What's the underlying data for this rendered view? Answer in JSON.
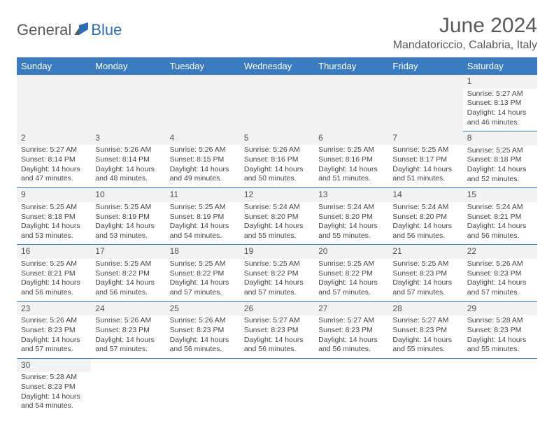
{
  "logo": {
    "text1": "General",
    "text2": "Blue"
  },
  "title": "June 2024",
  "location": "Mandatoriccio, Calabria, Italy",
  "colors": {
    "header_bg": "#3a7bbf",
    "header_text": "#ffffff",
    "body_text": "#444444",
    "title_text": "#58595b",
    "row_divider": "#3a7bbf",
    "daynum_bg": "#f2f2f2"
  },
  "daysOfWeek": [
    "Sunday",
    "Monday",
    "Tuesday",
    "Wednesday",
    "Thursday",
    "Friday",
    "Saturday"
  ],
  "weeks": [
    [
      null,
      null,
      null,
      null,
      null,
      null,
      {
        "n": "1",
        "sr": "5:27 AM",
        "ss": "8:13 PM",
        "dl": "14 hours and 46 minutes."
      }
    ],
    [
      {
        "n": "2",
        "sr": "5:27 AM",
        "ss": "8:14 PM",
        "dl": "14 hours and 47 minutes."
      },
      {
        "n": "3",
        "sr": "5:26 AM",
        "ss": "8:14 PM",
        "dl": "14 hours and 48 minutes."
      },
      {
        "n": "4",
        "sr": "5:26 AM",
        "ss": "8:15 PM",
        "dl": "14 hours and 49 minutes."
      },
      {
        "n": "5",
        "sr": "5:26 AM",
        "ss": "8:16 PM",
        "dl": "14 hours and 50 minutes."
      },
      {
        "n": "6",
        "sr": "5:25 AM",
        "ss": "8:16 PM",
        "dl": "14 hours and 51 minutes."
      },
      {
        "n": "7",
        "sr": "5:25 AM",
        "ss": "8:17 PM",
        "dl": "14 hours and 51 minutes."
      },
      {
        "n": "8",
        "sr": "5:25 AM",
        "ss": "8:18 PM",
        "dl": "14 hours and 52 minutes."
      }
    ],
    [
      {
        "n": "9",
        "sr": "5:25 AM",
        "ss": "8:18 PM",
        "dl": "14 hours and 53 minutes."
      },
      {
        "n": "10",
        "sr": "5:25 AM",
        "ss": "8:19 PM",
        "dl": "14 hours and 53 minutes."
      },
      {
        "n": "11",
        "sr": "5:25 AM",
        "ss": "8:19 PM",
        "dl": "14 hours and 54 minutes."
      },
      {
        "n": "12",
        "sr": "5:24 AM",
        "ss": "8:20 PM",
        "dl": "14 hours and 55 minutes."
      },
      {
        "n": "13",
        "sr": "5:24 AM",
        "ss": "8:20 PM",
        "dl": "14 hours and 55 minutes."
      },
      {
        "n": "14",
        "sr": "5:24 AM",
        "ss": "8:20 PM",
        "dl": "14 hours and 56 minutes."
      },
      {
        "n": "15",
        "sr": "5:24 AM",
        "ss": "8:21 PM",
        "dl": "14 hours and 56 minutes."
      }
    ],
    [
      {
        "n": "16",
        "sr": "5:25 AM",
        "ss": "8:21 PM",
        "dl": "14 hours and 56 minutes."
      },
      {
        "n": "17",
        "sr": "5:25 AM",
        "ss": "8:22 PM",
        "dl": "14 hours and 56 minutes."
      },
      {
        "n": "18",
        "sr": "5:25 AM",
        "ss": "8:22 PM",
        "dl": "14 hours and 57 minutes."
      },
      {
        "n": "19",
        "sr": "5:25 AM",
        "ss": "8:22 PM",
        "dl": "14 hours and 57 minutes."
      },
      {
        "n": "20",
        "sr": "5:25 AM",
        "ss": "8:22 PM",
        "dl": "14 hours and 57 minutes."
      },
      {
        "n": "21",
        "sr": "5:25 AM",
        "ss": "8:23 PM",
        "dl": "14 hours and 57 minutes."
      },
      {
        "n": "22",
        "sr": "5:26 AM",
        "ss": "8:23 PM",
        "dl": "14 hours and 57 minutes."
      }
    ],
    [
      {
        "n": "23",
        "sr": "5:26 AM",
        "ss": "8:23 PM",
        "dl": "14 hours and 57 minutes."
      },
      {
        "n": "24",
        "sr": "5:26 AM",
        "ss": "8:23 PM",
        "dl": "14 hours and 57 minutes."
      },
      {
        "n": "25",
        "sr": "5:26 AM",
        "ss": "8:23 PM",
        "dl": "14 hours and 56 minutes."
      },
      {
        "n": "26",
        "sr": "5:27 AM",
        "ss": "8:23 PM",
        "dl": "14 hours and 56 minutes."
      },
      {
        "n": "27",
        "sr": "5:27 AM",
        "ss": "8:23 PM",
        "dl": "14 hours and 56 minutes."
      },
      {
        "n": "28",
        "sr": "5:27 AM",
        "ss": "8:23 PM",
        "dl": "14 hours and 55 minutes."
      },
      {
        "n": "29",
        "sr": "5:28 AM",
        "ss": "8:23 PM",
        "dl": "14 hours and 55 minutes."
      }
    ],
    [
      {
        "n": "30",
        "sr": "5:28 AM",
        "ss": "8:23 PM",
        "dl": "14 hours and 54 minutes."
      },
      null,
      null,
      null,
      null,
      null,
      null
    ]
  ],
  "labels": {
    "sunrise": "Sunrise:",
    "sunset": "Sunset:",
    "daylight": "Daylight:"
  }
}
